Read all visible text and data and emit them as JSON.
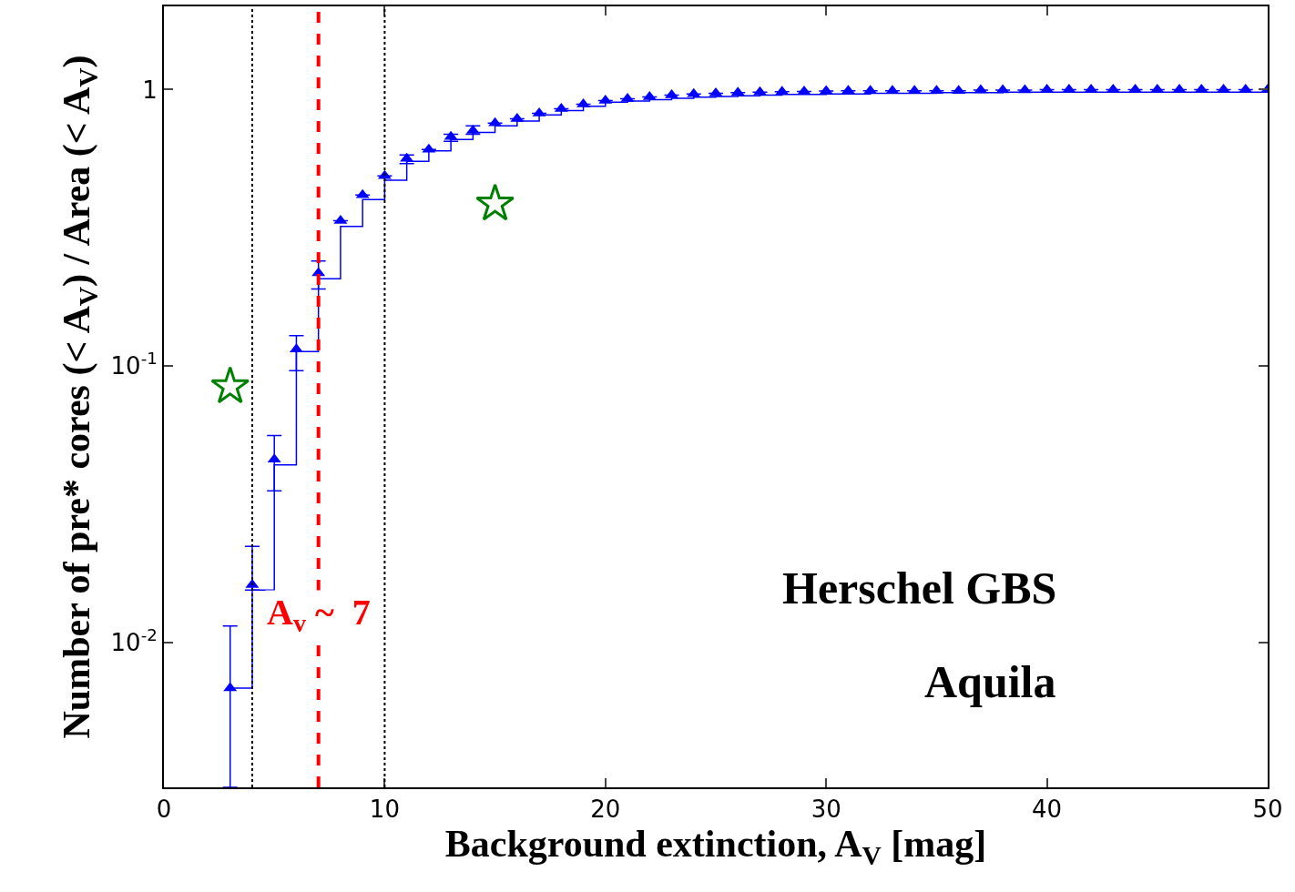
{
  "chart_data": {
    "type": "scatter",
    "xlabel": "Background extinction, A$_{V}$ [mag]",
    "ylabel": "Number of pre* cores (< A$_{V}$) / Area (< A$_{V}$)",
    "log": "y",
    "xlim": [
      0,
      50
    ],
    "xticks": [
      0,
      10,
      20,
      30,
      40,
      50
    ],
    "ylim": [
      0.003,
      2
    ],
    "yticks": [
      {
        "value": 0.01,
        "label": "10$^{-2}$"
      },
      {
        "value": 0.1,
        "label": "10$^{-1}$"
      },
      1
    ],
    "x": [
      3,
      4,
      5,
      6,
      7,
      8,
      9,
      10,
      11,
      12,
      13,
      14,
      15,
      16,
      17,
      18,
      19,
      20,
      21,
      22,
      23,
      24,
      25,
      26,
      27,
      28,
      29,
      30,
      31,
      32,
      33,
      34,
      35,
      36,
      37,
      38,
      39,
      40,
      41,
      42,
      43,
      44,
      45,
      46,
      47,
      48,
      49,
      50
    ],
    "series": [
      {
        "type": "step",
        "color": "#0000ff",
        "marker": "none",
        "line_style": "solid",
        "values": [
          0.00685,
          0.0155,
          0.044,
          0.113,
          0.207,
          0.32,
          0.4,
          0.47,
          0.55,
          0.6,
          0.66,
          0.7,
          0.74,
          0.77,
          0.81,
          0.84,
          0.87,
          0.9,
          0.91,
          0.92,
          0.93,
          0.94,
          0.945,
          0.95,
          0.955,
          0.96,
          0.96,
          0.965,
          0.965,
          0.97,
          0.97,
          0.97,
          0.975,
          0.975,
          0.975,
          0.98,
          0.98,
          0.98,
          0.98,
          0.98,
          0.98,
          0.98,
          0.98,
          0.98,
          0.98,
          0.98,
          0.98,
          0.98
        ]
      },
      {
        "color": "#0000ff",
        "marker": "triangle",
        "values": [
          0.00685,
          0.0162,
          0.046,
          0.115,
          0.217,
          0.336,
          0.416,
          0.488,
          0.563,
          0.607,
          0.675,
          0.711,
          0.756,
          0.785,
          0.821,
          0.853,
          0.886,
          0.913,
          0.927,
          0.941,
          0.956,
          0.965,
          0.97,
          0.975,
          0.98,
          0.982,
          0.985,
          0.988,
          0.99,
          0.99,
          0.99,
          0.99,
          0.99,
          0.99,
          0.995,
          0.995,
          0.995,
          1.0,
          1.0,
          1.0,
          1.0,
          1.0,
          1.0,
          1.0,
          1.0,
          1.0,
          1.0,
          1.0
        ],
        "errors": [
          [
            0.003,
            0.0115
          ],
          [
            0.0155,
            0.0223
          ],
          [
            0.0354,
            0.0561
          ],
          [
            0.0963,
            0.129
          ],
          [
            0.19,
            0.24
          ],
          null,
          null,
          null,
          [
            0.54,
            0.58
          ],
          null,
          [
            0.65,
            0.69
          ],
          [
            0.69,
            0.74
          ],
          null,
          null,
          null,
          null,
          null,
          null,
          null,
          null,
          null,
          null,
          null,
          null,
          null,
          null,
          null,
          null,
          null,
          null,
          null,
          null,
          null,
          null,
          null,
          null,
          null,
          null,
          null,
          null,
          null,
          null,
          null,
          null,
          null,
          null,
          null,
          null
        ]
      },
      {
        "type": "scatter",
        "color": "#008000",
        "marker": "star",
        "x": [
          3,
          15
        ],
        "values": [
          0.0843,
          0.386
        ]
      }
    ],
    "ref_lines": [
      {
        "axis": "x",
        "value": 4,
        "color": "#000000",
        "line_style": "dotted"
      },
      {
        "axis": "x",
        "value": 7,
        "color": "#ff0000",
        "line_style": "dashed",
        "label": "A$_{v}$ ~  7"
      },
      {
        "axis": "x",
        "value": 10,
        "color": "#000000",
        "line_style": "dotted"
      }
    ],
    "annotations": [
      "Herschel GBS",
      "Aquila"
    ]
  }
}
